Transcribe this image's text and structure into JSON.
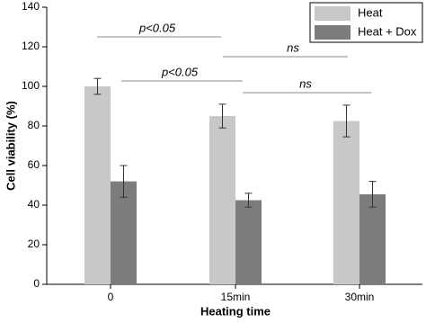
{
  "chart_data": {
    "type": "bar",
    "xlabel": "Heating time",
    "ylabel": "Cell viability (%)",
    "categories": [
      "0",
      "15min",
      "30min"
    ],
    "series": [
      {
        "name": "Heat",
        "color": "#c8c8c8",
        "values": [
          100,
          85,
          82.5
        ],
        "errors": [
          4,
          6,
          8
        ]
      },
      {
        "name": "Heat + Dox",
        "color": "#7c7c7c",
        "values": [
          52,
          42.5,
          45.5
        ],
        "errors": [
          8,
          3.5,
          6.5
        ]
      }
    ],
    "ylim": [
      0,
      140
    ],
    "yticks": [
      0,
      20,
      40,
      60,
      80,
      100,
      120,
      140
    ],
    "legend": "upper right",
    "annotations": [
      "p<0.05",
      "ns",
      "p<0.05",
      "ns"
    ]
  }
}
